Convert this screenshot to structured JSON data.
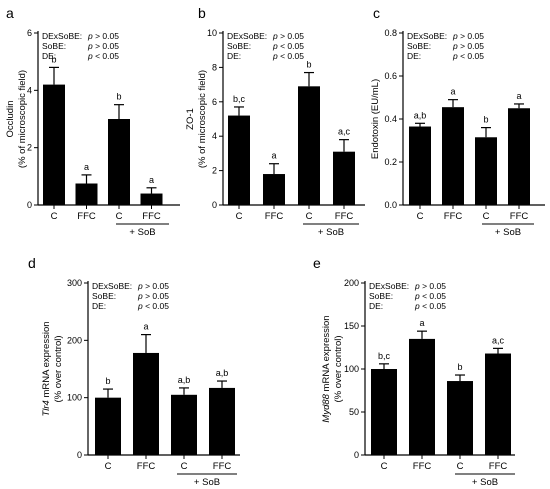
{
  "chart_data": [
    {
      "panel": "a",
      "type": "bar",
      "categories": [
        "C",
        "FFC",
        "C",
        "FFC"
      ],
      "group_label": "+ SoB",
      "ylabel": [
        "Occludin",
        "(% of microscopic field)"
      ],
      "ylim": [
        0,
        6
      ],
      "yticks": [
        "0",
        "2",
        "4",
        "6"
      ],
      "values": [
        4.2,
        0.75,
        3.0,
        0.4
      ],
      "errors": [
        0.6,
        0.3,
        0.5,
        0.2
      ],
      "sig_labels": [
        "b",
        "a",
        "b",
        "a"
      ],
      "stats": [
        {
          "name": "DExSoBE:",
          "value": "p > 0.05"
        },
        {
          "name": "SoBE:",
          "value": "p > 0.05"
        },
        {
          "name": "DE:",
          "value": "p < 0.05"
        }
      ]
    },
    {
      "panel": "b",
      "type": "bar",
      "categories": [
        "C",
        "FFC",
        "C",
        "FFC"
      ],
      "group_label": "+ SoB",
      "ylabel": [
        "ZO-1",
        "(% of microscopic field)"
      ],
      "ylim": [
        0,
        10
      ],
      "yticks": [
        "0",
        "2",
        "4",
        "6",
        "8",
        "10"
      ],
      "values": [
        5.2,
        1.8,
        6.9,
        3.1
      ],
      "errors": [
        0.5,
        0.6,
        0.8,
        0.7
      ],
      "sig_labels": [
        "b,c",
        "a",
        "b",
        "a,c"
      ],
      "stats": [
        {
          "name": "DExSoBE:",
          "value": "p > 0.05"
        },
        {
          "name": "SoBE:",
          "value": "p < 0.05"
        },
        {
          "name": "DE:",
          "value": "p < 0.05"
        }
      ]
    },
    {
      "panel": "c",
      "type": "bar",
      "categories": [
        "C",
        "FFC",
        "C",
        "FFC"
      ],
      "group_label": "+ SoB",
      "ylabel": [
        "Endotoxin (EU/mL)"
      ],
      "ylim": [
        0,
        0.8
      ],
      "yticks": [
        "0.0",
        "0.2",
        "0.4",
        "0.6",
        "0.8"
      ],
      "values": [
        0.365,
        0.455,
        0.315,
        0.45
      ],
      "errors": [
        0.015,
        0.035,
        0.045,
        0.02
      ],
      "sig_labels": [
        "a,b",
        "a",
        "b",
        "a"
      ],
      "stats": [
        {
          "name": "DExSoBE:",
          "value": "p > 0.05"
        },
        {
          "name": "SoBE:",
          "value": "p > 0.05"
        },
        {
          "name": "DE:",
          "value": "p < 0.05"
        }
      ]
    },
    {
      "panel": "d",
      "type": "bar",
      "categories": [
        "C",
        "FFC",
        "C",
        "FFC"
      ],
      "group_label": "+ SoB",
      "ylabel": [
        "Tlr4 mRNA expression",
        "(% over control)"
      ],
      "ylabel_italic_word": "Tlr4",
      "ylim": [
        0,
        300
      ],
      "yticks": [
        "0",
        "100",
        "200",
        "300"
      ],
      "values": [
        100,
        178,
        105,
        117
      ],
      "errors": [
        15,
        32,
        12,
        12
      ],
      "sig_labels": [
        "b",
        "a",
        "a,b",
        "a,b"
      ],
      "stats": [
        {
          "name": "DExSoBE:",
          "value": "p > 0.05"
        },
        {
          "name": "SoBE:",
          "value": "p > 0.05"
        },
        {
          "name": "DE:",
          "value": "p < 0.05"
        }
      ]
    },
    {
      "panel": "e",
      "type": "bar",
      "categories": [
        "C",
        "FFC",
        "C",
        "FFC"
      ],
      "group_label": "+ SoB",
      "ylabel": [
        "Myd88 mRNA expression",
        "(% over control)"
      ],
      "ylabel_italic_word": "Myd88",
      "ylim": [
        0,
        200
      ],
      "yticks": [
        "0",
        "50",
        "100",
        "150",
        "200"
      ],
      "values": [
        100,
        135,
        86,
        118
      ],
      "errors": [
        6,
        9,
        7,
        6
      ],
      "sig_labels": [
        "b,c",
        "a",
        "b",
        "a,c"
      ],
      "stats": [
        {
          "name": "DExSoBE:",
          "value": "p > 0.05"
        },
        {
          "name": "SoBE:",
          "value": "p < 0.05"
        },
        {
          "name": "DE:",
          "value": "p < 0.05"
        }
      ]
    }
  ]
}
